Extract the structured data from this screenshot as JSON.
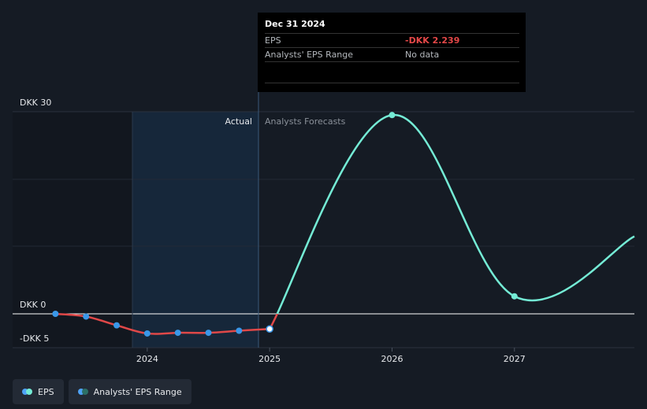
{
  "tooltip": {
    "date": "Dec 31 2024",
    "rows": [
      {
        "label": "EPS",
        "value": "-DKK 2.239"
      },
      {
        "label": "Analysts' EPS Range",
        "value": "No data"
      }
    ]
  },
  "legend": {
    "items": [
      {
        "label": "EPS",
        "colors": [
          "#4fa3f7",
          "#74ebd5"
        ]
      },
      {
        "label": "Analysts' EPS Range",
        "colors": [
          "#4fa3f7",
          "#2c6f66"
        ]
      }
    ]
  },
  "colors": {
    "background": "#151b24",
    "actual_line": "#e04848",
    "actual_points": "#3a97e8",
    "forecast_line": "#74ebd5",
    "highlight_band": "#18314a",
    "gridline": "#2a323e",
    "zero_line": "#ffffff"
  },
  "chart_data": {
    "type": "line",
    "y_unit": "DKK",
    "ylim": [
      -5,
      30
    ],
    "y_tick_labels": [
      {
        "value": 30,
        "label": "DKK 30"
      },
      {
        "value": 0,
        "label": "DKK 0"
      },
      {
        "value": -5,
        "label": "-DKK 5"
      }
    ],
    "x_tick_labels": [
      {
        "value": 2024,
        "label": "2024"
      },
      {
        "value": 2025,
        "label": "2025"
      },
      {
        "value": 2026,
        "label": "2026"
      },
      {
        "value": 2027,
        "label": "2027"
      }
    ],
    "xlim": [
      2022.9,
      2027.98
    ],
    "region_labels": {
      "actual": "Actual",
      "forecast": "Analysts Forecasts"
    },
    "series": [
      {
        "name": "EPS",
        "kind": "actual",
        "points": [
          {
            "x": 2023.25,
            "y": 0.0
          },
          {
            "x": 2023.5,
            "y": -0.4
          },
          {
            "x": 2023.75,
            "y": -1.7
          },
          {
            "x": 2024.0,
            "y": -2.9
          },
          {
            "x": 2024.25,
            "y": -2.8
          },
          {
            "x": 2024.5,
            "y": -2.8
          },
          {
            "x": 2024.75,
            "y": -2.5
          },
          {
            "x": 2025.0,
            "y": -2.239
          }
        ]
      },
      {
        "name": "EPS",
        "kind": "forecast",
        "points": [
          {
            "x": 2025.0,
            "y": -2.239
          },
          {
            "x": 2026.0,
            "y": 29.5
          },
          {
            "x": 2027.0,
            "y": 2.6
          },
          {
            "x": 2027.98,
            "y": 11.5
          }
        ]
      }
    ]
  }
}
